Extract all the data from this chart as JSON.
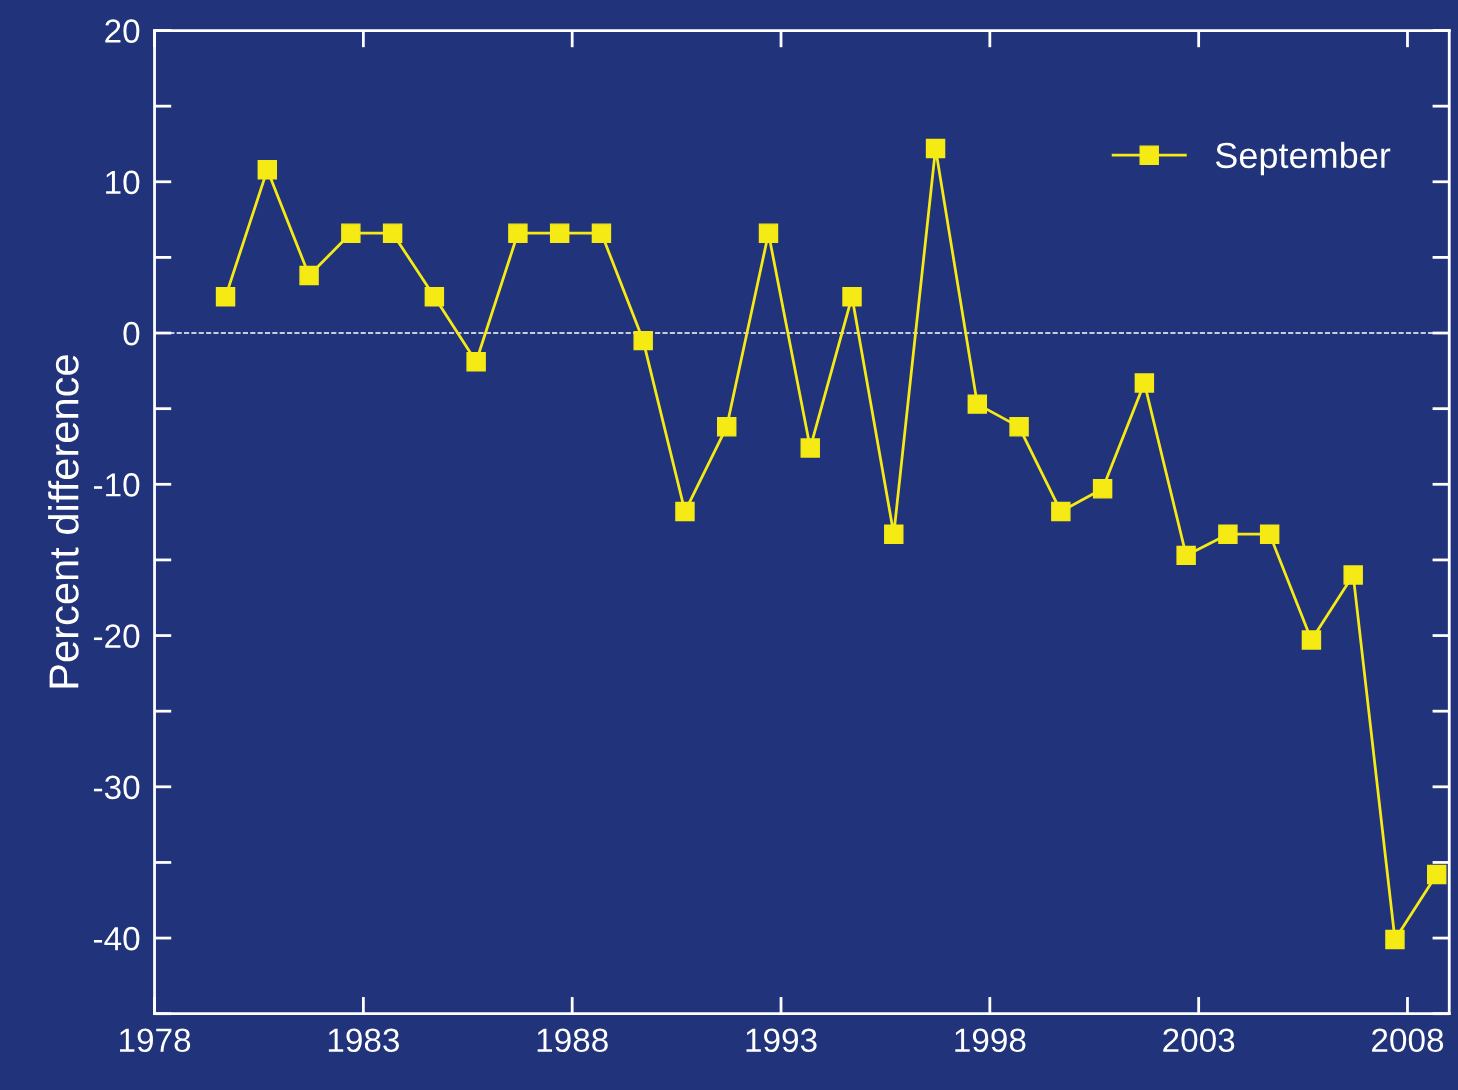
{
  "chart_data": {
    "type": "line",
    "ylabel": "Percent difference",
    "x": [
      1979.7,
      1980.7,
      1981.7,
      1982.7,
      1983.7,
      1984.7,
      1985.7,
      1986.7,
      1987.7,
      1988.7,
      1989.7,
      1990.7,
      1991.7,
      1992.7,
      1993.7,
      1994.7,
      1995.7,
      1996.7,
      1997.7,
      1998.7,
      1999.7,
      2000.7,
      2001.7,
      2002.7,
      2003.7,
      2004.7,
      2005.7,
      2006.7,
      2007.7,
      2008.7
    ],
    "series": [
      {
        "name": "September",
        "color": "#f5ea14",
        "values": [
          2.4,
          10.8,
          3.8,
          6.6,
          6.6,
          2.4,
          -1.9,
          6.6,
          6.6,
          6.6,
          -0.5,
          -11.8,
          -6.2,
          6.6,
          -7.6,
          2.4,
          -13.3,
          12.2,
          -4.7,
          -6.2,
          -11.8,
          -10.3,
          -3.3,
          -14.7,
          -13.3,
          -13.3,
          -20.3,
          -16.0,
          -40.1,
          -35.8
        ]
      }
    ],
    "xlim": [
      1978,
      2009
    ],
    "xticks": [
      1978,
      1983,
      1988,
      1993,
      1998,
      2003,
      2008
    ],
    "ylim": [
      -45,
      20
    ],
    "yticks": [
      -40,
      -30,
      -20,
      -10,
      0,
      10,
      20
    ],
    "ref_lines": [
      {
        "axis": "y",
        "value": 0,
        "label": null,
        "color": "#ffffff",
        "line_style": "dashed"
      }
    ],
    "marker": "square",
    "line_style": "solid",
    "grid": false,
    "legend": "top right"
  }
}
